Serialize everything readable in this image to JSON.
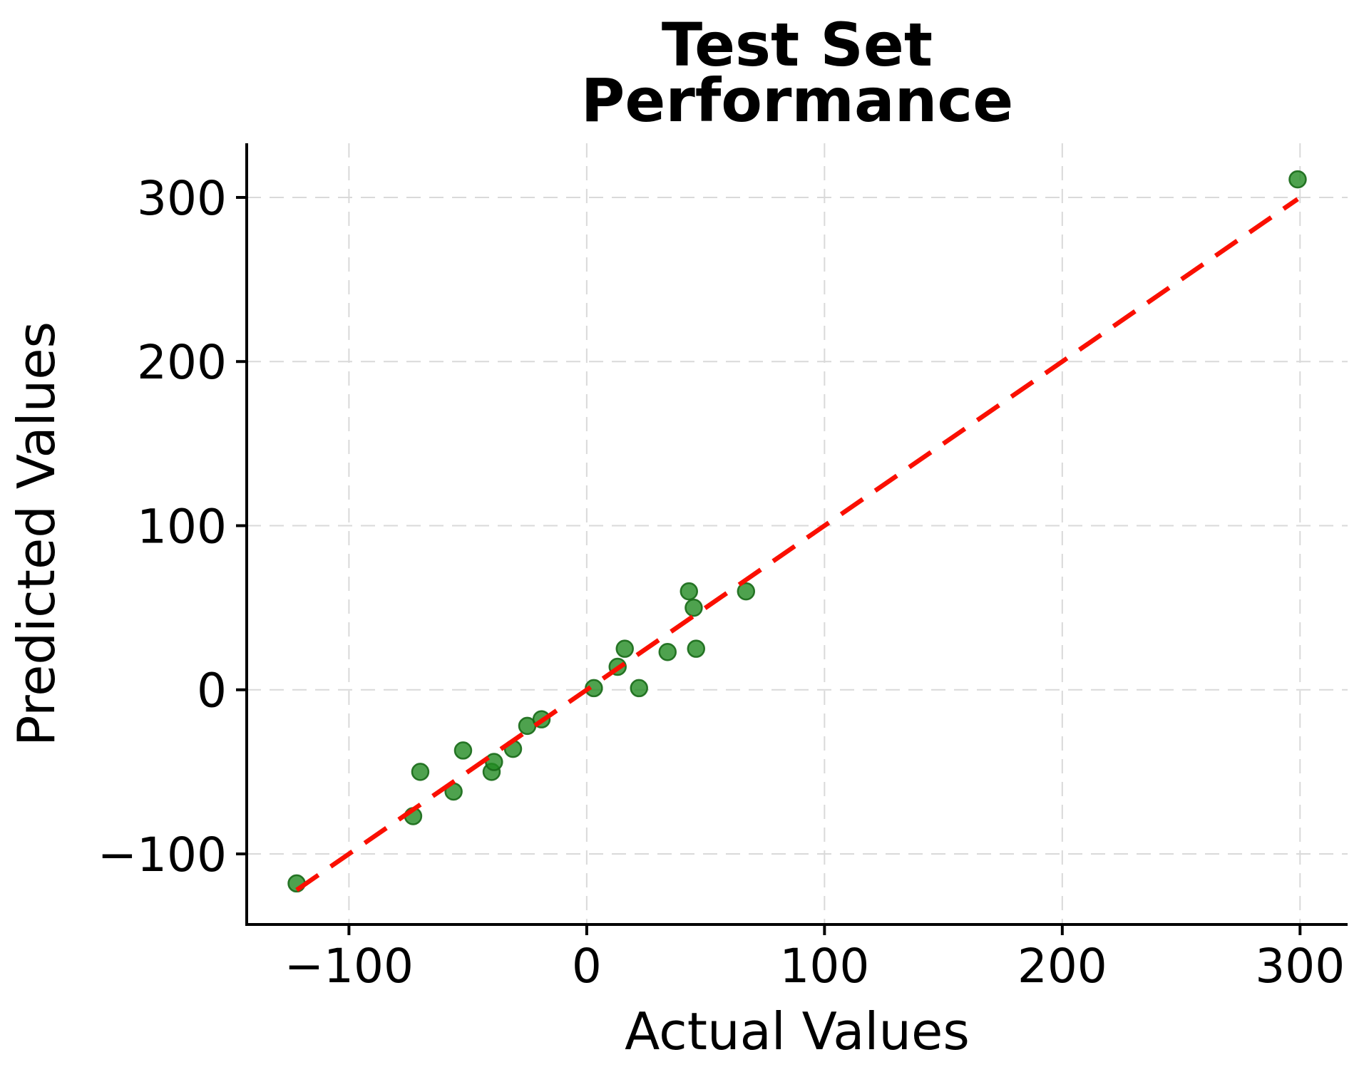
{
  "chart_data": {
    "type": "scatter",
    "title_line1": "Test Set",
    "title_line2": "Performance",
    "xlabel": "Actual Values",
    "ylabel": "Predicted Values",
    "x_range": [
      -143,
      320
    ],
    "y_range": [
      -143,
      333
    ],
    "grid": true,
    "grid_style": "dashed",
    "legend": "none",
    "x_ticks": [
      {
        "value": -100,
        "label": "−100"
      },
      {
        "value": 0,
        "label": "0"
      },
      {
        "value": 100,
        "label": "100"
      },
      {
        "value": 200,
        "label": "200"
      },
      {
        "value": 300,
        "label": "300"
      }
    ],
    "y_ticks": [
      {
        "value": -100,
        "label": "−100"
      },
      {
        "value": 0,
        "label": "0"
      },
      {
        "value": 100,
        "label": "100"
      },
      {
        "value": 200,
        "label": "200"
      },
      {
        "value": 300,
        "label": "300"
      }
    ],
    "points": [
      [
        -122,
        -118
      ],
      [
        -73,
        -77
      ],
      [
        -70,
        -50
      ],
      [
        -56,
        -62
      ],
      [
        -52,
        -37
      ],
      [
        -40,
        -50
      ],
      [
        -39,
        -44
      ],
      [
        -31,
        -36
      ],
      [
        -25,
        -22
      ],
      [
        -19,
        -18
      ],
      [
        3,
        1
      ],
      [
        13,
        14
      ],
      [
        16,
        25
      ],
      [
        22,
        1
      ],
      [
        34,
        23
      ],
      [
        43,
        60
      ],
      [
        45,
        50
      ],
      [
        46,
        25
      ],
      [
        67,
        60
      ],
      [
        299,
        311
      ]
    ],
    "identity_line": {
      "x1": -122,
      "y1": -122,
      "x2": 299,
      "y2": 299
    },
    "colors": {
      "marker_fill": "rgba(34,139,34,0.8)",
      "marker_edge": "rgba(23,105,23,0.9)",
      "line": "#fa0f00",
      "grid": "#d9d9d9",
      "axis": "#000000",
      "text": "#000000",
      "background": "#ffffff"
    }
  }
}
